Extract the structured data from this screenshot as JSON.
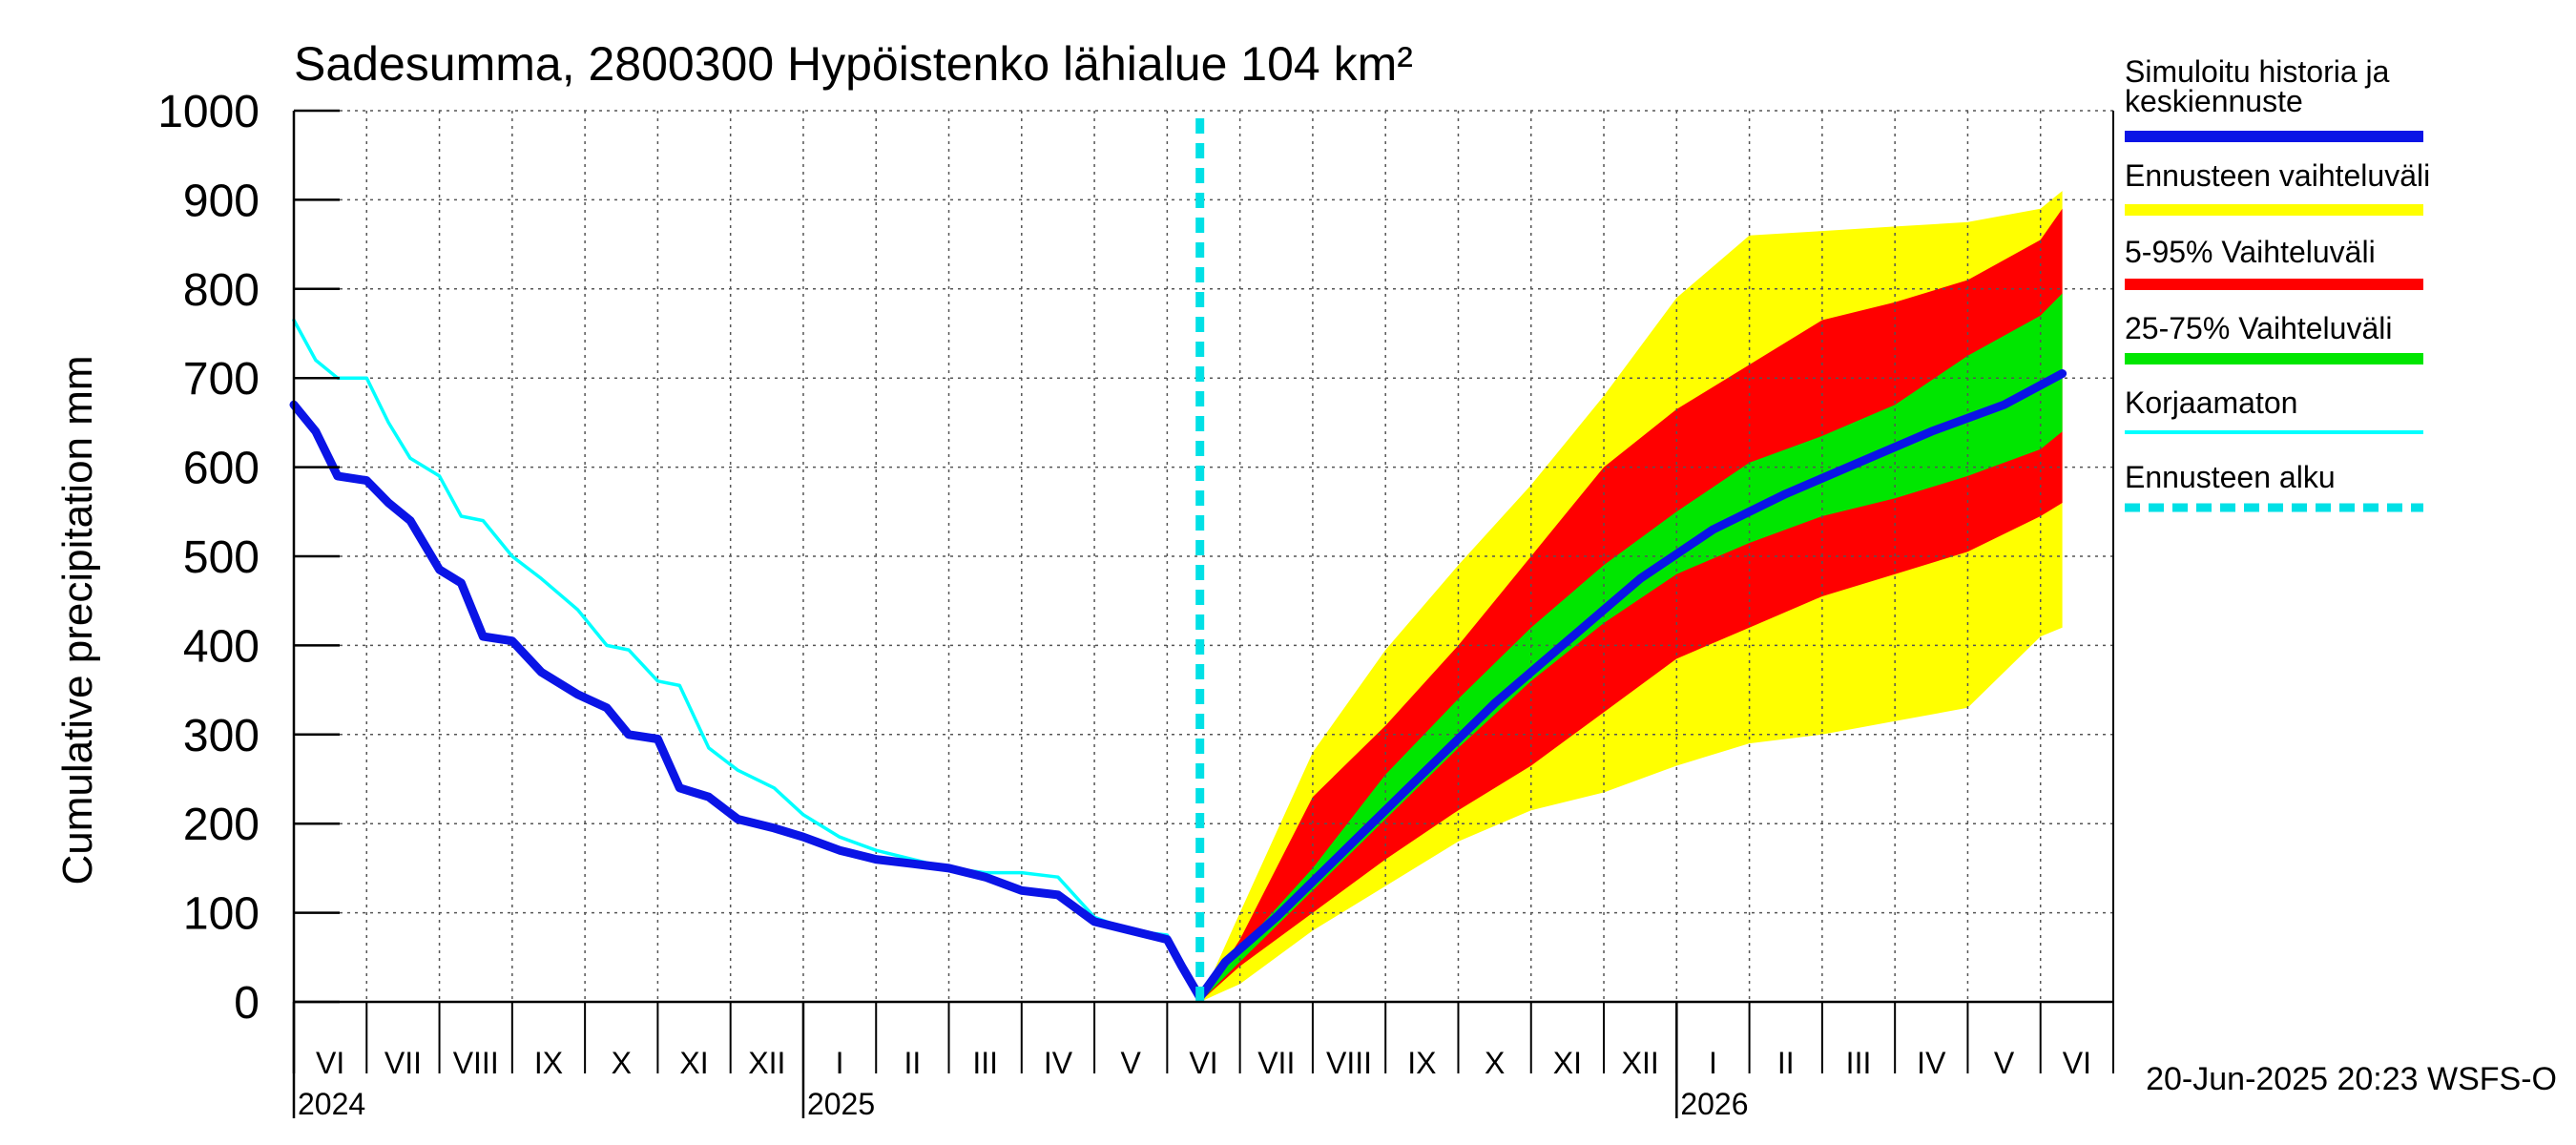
{
  "chart_data": {
    "type": "area",
    "title": "Sadesumma, 2800300 Hypöistenko lähialue 104 km²",
    "ylabel": "Cumulative precipitation   mm",
    "xlabel": "",
    "ylim": [
      0,
      1000
    ],
    "y_ticks": [
      0,
      100,
      200,
      300,
      400,
      500,
      600,
      700,
      800,
      900,
      1000
    ],
    "grid": true,
    "months": [
      "VI",
      "VII",
      "VIII",
      "IX",
      "X",
      "XI",
      "XII",
      "I",
      "II",
      "III",
      "IV",
      "V",
      "VI",
      "VII",
      "VIII",
      "IX",
      "X",
      "XI",
      "XII",
      "I",
      "II",
      "III",
      "IV",
      "V",
      "VI"
    ],
    "years": [
      {
        "label": "2024",
        "month_index": 0
      },
      {
        "label": "2025",
        "month_index": 7
      },
      {
        "label": "2026",
        "month_index": 19
      }
    ],
    "forecast_start_month": 12.45,
    "legend_position": "right",
    "legend": [
      {
        "label": "Simuloitu historia ja keskiennuste",
        "color": "#0a14e6",
        "style": "thick"
      },
      {
        "label": "Ennusteen vaihteluväli",
        "color": "#ffff00",
        "style": "thick"
      },
      {
        "label": "5-95% Vaihteluväli",
        "color": "#ff0000",
        "style": "thick"
      },
      {
        "label": "25-75% Vaihteluväli",
        "color": "#00e600",
        "style": "thick"
      },
      {
        "label": "Korjaamaton",
        "color": "#00ffff",
        "style": "thin"
      },
      {
        "label": "Ennusteen alku",
        "color": "#00e0e6",
        "style": "dashed"
      }
    ],
    "series": [
      {
        "name": "Simuloitu historia ja keskiennuste",
        "color": "#0a14e6",
        "x": [
          0,
          0.3,
          0.6,
          1.0,
          1.3,
          1.6,
          2.0,
          2.3,
          2.6,
          3.0,
          3.4,
          3.9,
          4.3,
          4.6,
          5.0,
          5.3,
          5.7,
          6.1,
          6.6,
          7.0,
          7.5,
          8.0,
          8.5,
          9.0,
          9.5,
          10.0,
          10.5,
          11.0,
          11.5,
          12.0,
          12.2,
          12.45,
          12.8,
          13.5,
          14.5,
          15.5,
          16.5,
          17.5,
          18.5,
          19.5,
          20.5,
          21.5,
          22.5,
          23.5,
          24.3
        ],
        "y": [
          670,
          640,
          590,
          585,
          560,
          540,
          485,
          470,
          410,
          405,
          370,
          345,
          330,
          300,
          295,
          240,
          230,
          205,
          195,
          185,
          170,
          160,
          155,
          150,
          140,
          125,
          120,
          90,
          80,
          70,
          40,
          5,
          45,
          95,
          175,
          255,
          335,
          405,
          475,
          530,
          570,
          605,
          640,
          670,
          705
        ]
      },
      {
        "name": "Korjaamaton",
        "color": "#00ffff",
        "x": [
          0,
          0.3,
          0.6,
          1.0,
          1.3,
          1.6,
          2.0,
          2.3,
          2.6,
          3.0,
          3.4,
          3.9,
          4.3,
          4.6,
          5.0,
          5.3,
          5.7,
          6.1,
          6.6,
          7.0,
          7.5,
          8.0,
          8.5,
          9.0,
          9.5,
          10.0,
          10.5,
          11.0,
          11.5,
          12.0,
          12.2,
          12.45
        ],
        "y": [
          765,
          720,
          700,
          700,
          650,
          610,
          590,
          545,
          540,
          500,
          475,
          440,
          400,
          395,
          360,
          355,
          285,
          260,
          240,
          210,
          185,
          170,
          160,
          150,
          145,
          145,
          140,
          95,
          80,
          75,
          45,
          5
        ]
      }
    ],
    "bands": [
      {
        "name": "Ennusteen vaihteluväli",
        "color": "#ffff00",
        "x": [
          12.45,
          13.0,
          14.0,
          15.0,
          16.0,
          17.0,
          18.0,
          19.0,
          20.0,
          21.0,
          22.0,
          23.0,
          24.0,
          24.3
        ],
        "low": [
          0,
          20,
          80,
          130,
          180,
          215,
          235,
          265,
          290,
          300,
          315,
          330,
          410,
          420
        ],
        "high": [
          0,
          100,
          280,
          395,
          490,
          580,
          680,
          790,
          860,
          865,
          870,
          875,
          890,
          910
        ]
      },
      {
        "name": "5-95% Vaihteluväli",
        "color": "#ff0000",
        "x": [
          12.45,
          13.0,
          14.0,
          15.0,
          16.0,
          17.0,
          18.0,
          19.0,
          20.0,
          21.0,
          22.0,
          23.0,
          24.0,
          24.3
        ],
        "low": [
          0,
          40,
          100,
          160,
          215,
          265,
          325,
          385,
          420,
          455,
          480,
          505,
          545,
          560
        ],
        "high": [
          0,
          70,
          230,
          310,
          400,
          500,
          600,
          665,
          715,
          765,
          785,
          810,
          855,
          890
        ]
      },
      {
        "name": "25-75% Vaihteluväli",
        "color": "#00e600",
        "x": [
          12.45,
          13.0,
          14.0,
          15.0,
          16.0,
          17.0,
          18.0,
          19.0,
          20.0,
          21.0,
          22.0,
          23.0,
          24.0,
          24.3
        ],
        "low": [
          0,
          45,
          125,
          205,
          285,
          360,
          425,
          480,
          515,
          545,
          565,
          590,
          620,
          640
        ],
        "high": [
          0,
          60,
          150,
          255,
          340,
          420,
          490,
          550,
          605,
          635,
          670,
          725,
          770,
          795
        ]
      }
    ]
  },
  "footer": {
    "timestamp": "20-Jun-2025 20:23 WSFS-O"
  }
}
